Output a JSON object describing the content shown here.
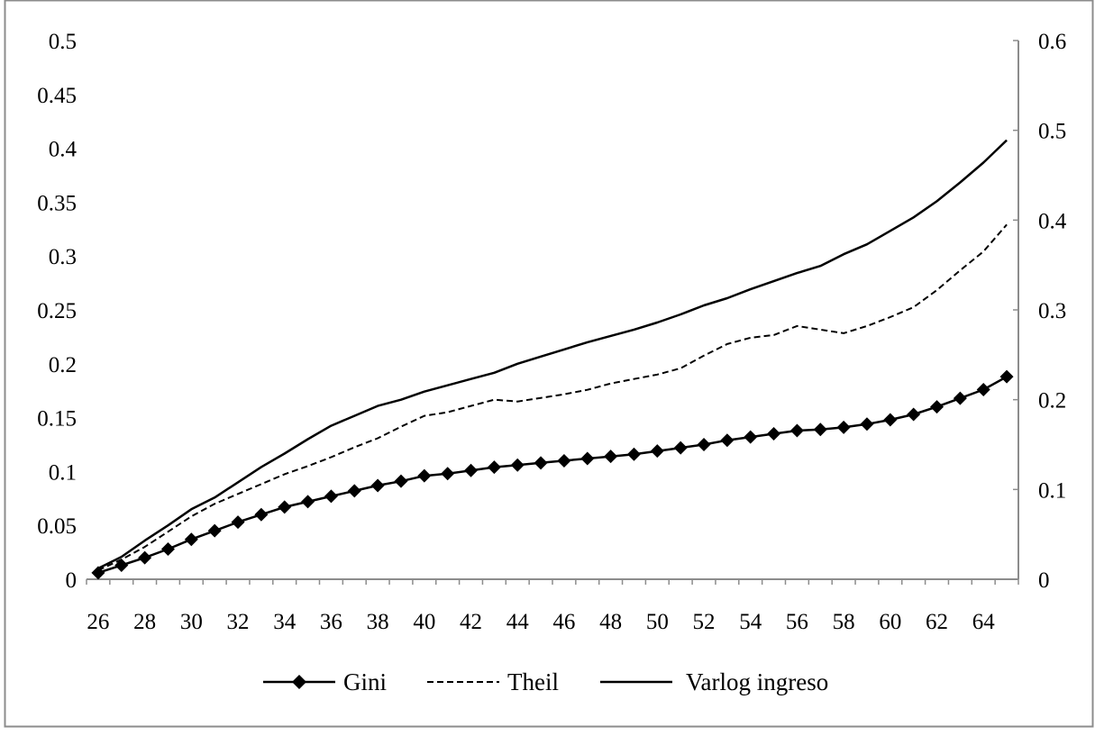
{
  "chart_data": {
    "type": "line",
    "title": "",
    "xlabel": "",
    "ylabel": "",
    "x": [
      26,
      27,
      28,
      29,
      30,
      31,
      32,
      33,
      34,
      35,
      36,
      37,
      38,
      39,
      40,
      41,
      42,
      43,
      44,
      45,
      46,
      47,
      48,
      49,
      50,
      51,
      52,
      53,
      54,
      55,
      56,
      57,
      58,
      59,
      60,
      61,
      62,
      63,
      64,
      65
    ],
    "x_ticks": [
      "26",
      "28",
      "30",
      "32",
      "34",
      "36",
      "38",
      "40",
      "42",
      "44",
      "46",
      "48",
      "50",
      "52",
      "54",
      "56",
      "58",
      "60",
      "62",
      "64"
    ],
    "y_left": {
      "ylim": [
        0,
        0.5
      ],
      "ticks": [
        "0",
        "0.05",
        "0.1",
        "0.15",
        "0.2",
        "0.25",
        "0.3",
        "0.35",
        "0.4",
        "0.45",
        "0.5"
      ]
    },
    "y_right": {
      "ylim": [
        0,
        0.6
      ],
      "ticks": [
        "0",
        "0.1",
        "0.2",
        "0.3",
        "0.4",
        "0.5",
        "0.6"
      ]
    },
    "grid": false,
    "legend_position": "bottom",
    "series": [
      {
        "name": "Gini",
        "axis": "left",
        "style": "solid-diamond",
        "values": [
          0.006,
          0.013,
          0.02,
          0.028,
          0.037,
          0.045,
          0.053,
          0.06,
          0.067,
          0.072,
          0.077,
          0.082,
          0.087,
          0.091,
          0.096,
          0.098,
          0.101,
          0.104,
          0.106,
          0.108,
          0.11,
          0.112,
          0.114,
          0.116,
          0.119,
          0.122,
          0.125,
          0.129,
          0.132,
          0.135,
          0.138,
          0.139,
          0.141,
          0.144,
          0.148,
          0.153,
          0.16,
          0.168,
          0.176,
          0.188
        ]
      },
      {
        "name": "Theil",
        "axis": "right",
        "style": "dashed",
        "values": [
          0.01,
          0.022,
          0.036,
          0.053,
          0.07,
          0.084,
          0.095,
          0.106,
          0.117,
          0.126,
          0.136,
          0.147,
          0.157,
          0.17,
          0.182,
          0.186,
          0.193,
          0.2,
          0.198,
          0.202,
          0.206,
          0.211,
          0.218,
          0.223,
          0.228,
          0.235,
          0.249,
          0.262,
          0.269,
          0.272,
          0.282,
          0.278,
          0.274,
          0.282,
          0.292,
          0.303,
          0.322,
          0.344,
          0.365,
          0.395
        ]
      },
      {
        "name": "Varlog ingreso",
        "axis": "right",
        "style": "solid",
        "values": [
          0.012,
          0.025,
          0.043,
          0.06,
          0.078,
          0.091,
          0.108,
          0.125,
          0.14,
          0.156,
          0.171,
          0.182,
          0.193,
          0.2,
          0.209,
          0.216,
          0.223,
          0.23,
          0.24,
          0.248,
          0.256,
          0.264,
          0.271,
          0.278,
          0.286,
          0.295,
          0.305,
          0.313,
          0.323,
          0.332,
          0.341,
          0.349,
          0.362,
          0.373,
          0.388,
          0.403,
          0.421,
          0.442,
          0.464,
          0.489
        ]
      }
    ]
  }
}
